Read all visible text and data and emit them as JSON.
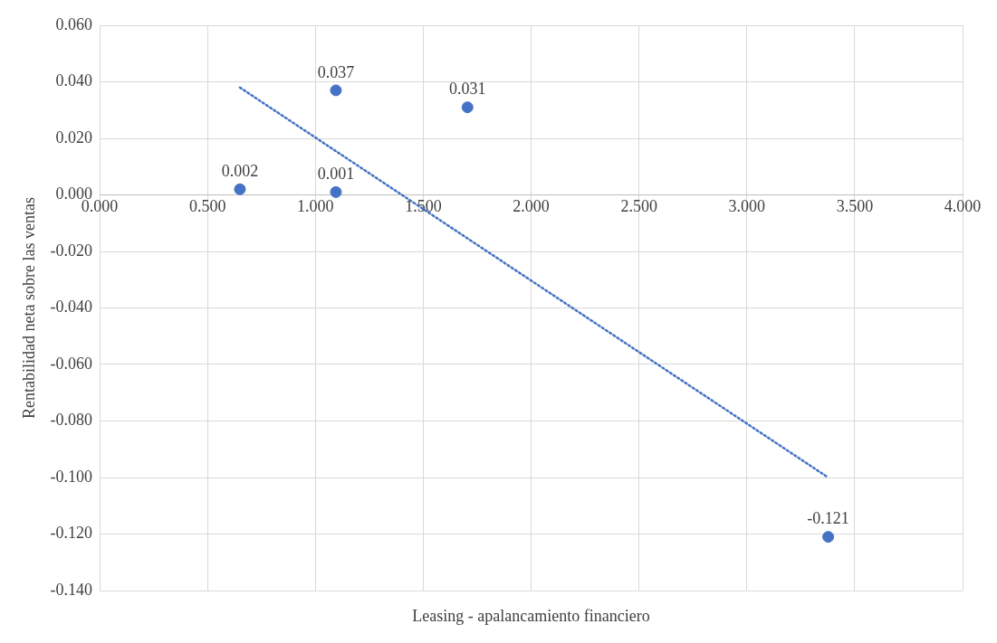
{
  "chart_data": {
    "type": "scatter",
    "xlabel": "Leasing - apalancamiento financiero",
    "ylabel": "Rentabilidad neta sobre las ventas",
    "series": [
      {
        "type": "scatter",
        "color": "#4472c4",
        "x": [
          0.65,
          1.095,
          1.095,
          1.705,
          3.377
        ],
        "values": [
          0.002,
          0.037,
          0.001,
          0.031,
          -0.121
        ],
        "value_labels": [
          "0.002",
          "0.037",
          "0.001",
          "0.031",
          "-0.121"
        ],
        "marker": "circle"
      },
      {
        "type": "line",
        "color": "#4472c4",
        "x": [
          0.65,
          3.377
        ],
        "values": [
          0.038,
          -0.1
        ],
        "line_style": "dotted",
        "marker": "none"
      }
    ],
    "xlim": [
      0,
      4
    ],
    "xticks": [
      {
        "value": 0,
        "label": "0.000"
      },
      {
        "value": 0.5,
        "label": "0.500"
      },
      {
        "value": 1,
        "label": "1.000"
      },
      {
        "value": 1.5,
        "label": "1.500"
      },
      {
        "value": 2,
        "label": "2.000"
      },
      {
        "value": 2.5,
        "label": "2.500"
      },
      {
        "value": 3,
        "label": "3.000"
      },
      {
        "value": 3.5,
        "label": "3.500"
      },
      {
        "value": 4,
        "label": "4.000"
      }
    ],
    "ylim": [
      -0.14,
      0.06
    ],
    "yticks": [
      {
        "value": -0.14,
        "label": "-0.140"
      },
      {
        "value": -0.12,
        "label": "-0.120"
      },
      {
        "value": -0.1,
        "label": "-0.100"
      },
      {
        "value": -0.08,
        "label": "-0.080"
      },
      {
        "value": -0.06,
        "label": "-0.060"
      },
      {
        "value": -0.04,
        "label": "-0.040"
      },
      {
        "value": -0.02,
        "label": "-0.020"
      },
      {
        "value": 0,
        "label": "0.000"
      },
      {
        "value": 0.02,
        "label": "0.020"
      },
      {
        "value": 0.04,
        "label": "0.040"
      },
      {
        "value": 0.06,
        "label": "0.060"
      }
    ],
    "grid": true,
    "legend": false
  }
}
